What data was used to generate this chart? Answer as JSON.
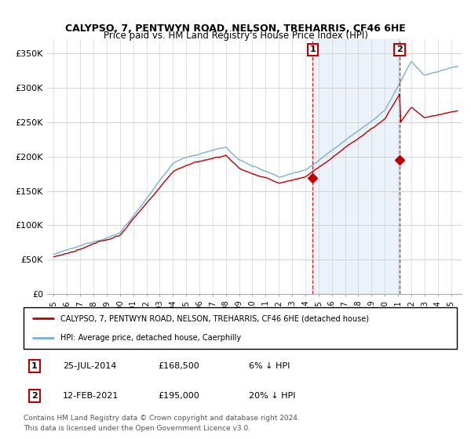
{
  "title": "CALYPSO, 7, PENTWYN ROAD, NELSON, TREHARRIS, CF46 6HE",
  "subtitle": "Price paid vs. HM Land Registry's House Price Index (HPI)",
  "ylabel_ticks": [
    "£0",
    "£50K",
    "£100K",
    "£150K",
    "£200K",
    "£250K",
    "£300K",
    "£350K"
  ],
  "ytick_values": [
    0,
    50000,
    100000,
    150000,
    200000,
    250000,
    300000,
    350000
  ],
  "ylim": [
    0,
    370000
  ],
  "xlim_start": 1994.5,
  "xlim_end": 2025.8,
  "xticks": [
    1995,
    1996,
    1997,
    1998,
    1999,
    2000,
    2001,
    2002,
    2003,
    2004,
    2005,
    2006,
    2007,
    2008,
    2009,
    2010,
    2011,
    2012,
    2013,
    2014,
    2015,
    2016,
    2017,
    2018,
    2019,
    2020,
    2021,
    2022,
    2023,
    2024,
    2025
  ],
  "transaction1": {
    "date_num": 2014.56,
    "price": 168500,
    "label": "1",
    "text": "25-JUL-2014",
    "price_str": "£168,500",
    "hpi_str": "6% ↓ HPI"
  },
  "transaction2": {
    "date_num": 2021.12,
    "price": 195000,
    "label": "2",
    "text": "12-FEB-2021",
    "price_str": "£195,000",
    "hpi_str": "20% ↓ HPI"
  },
  "legend_line1": "CALYPSO, 7, PENTWYN ROAD, NELSON, TREHARRIS, CF46 6HE (detached house)",
  "legend_line2": "HPI: Average price, detached house, Caerphilly",
  "footer": "Contains HM Land Registry data © Crown copyright and database right 2024.\nThis data is licensed under the Open Government Licence v3.0.",
  "hpi_color": "#7bafd4",
  "hpi_fill_color": "#deeaf5",
  "price_color": "#c00000",
  "background_color": "#ffffff",
  "grid_color": "#cccccc"
}
